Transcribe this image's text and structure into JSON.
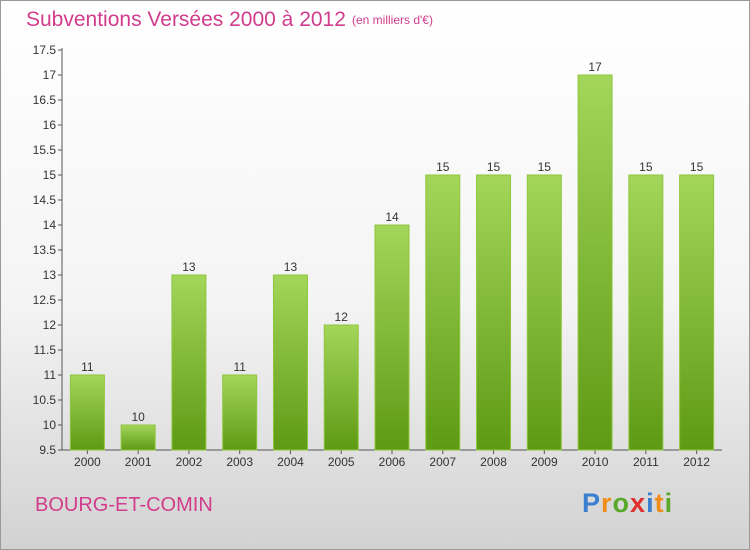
{
  "header": {
    "title": "Subventions Versées 2000 à 2012",
    "subtitle": "(en milliers d'€)"
  },
  "footer": {
    "city": "BOURG-ET-COMIN",
    "logo_letters": [
      "P",
      "r",
      "o",
      "x",
      "i",
      "t",
      "i"
    ],
    "logo_colors": [
      "#3a7fd0",
      "#f08c1a",
      "#5aa82a",
      "#e02f2f",
      "#3a7fd0",
      "#f08c1a",
      "#5aa82a"
    ]
  },
  "chart_data": {
    "type": "bar",
    "categories": [
      "2000",
      "2001",
      "2002",
      "2003",
      "2004",
      "2005",
      "2006",
      "2007",
      "2008",
      "2009",
      "2010",
      "2011",
      "2012"
    ],
    "values": [
      11,
      10,
      13,
      11,
      13,
      12,
      14,
      15,
      15,
      15,
      17,
      15,
      15
    ],
    "data_labels": [
      "11",
      "10",
      "13",
      "11",
      "13",
      "12",
      "14",
      "15",
      "15",
      "15",
      "17",
      "15",
      "15"
    ],
    "y_ticks": [
      "9.5",
      "10",
      "10.5",
      "11",
      "11.5",
      "12",
      "12.5",
      "13",
      "13.5",
      "14",
      "14.5",
      "15",
      "15.5",
      "16",
      "16.5",
      "17",
      "17.5"
    ],
    "ylim": [
      9.5,
      17.5
    ],
    "bar_color": "#7cbe2e",
    "grid": false
  }
}
